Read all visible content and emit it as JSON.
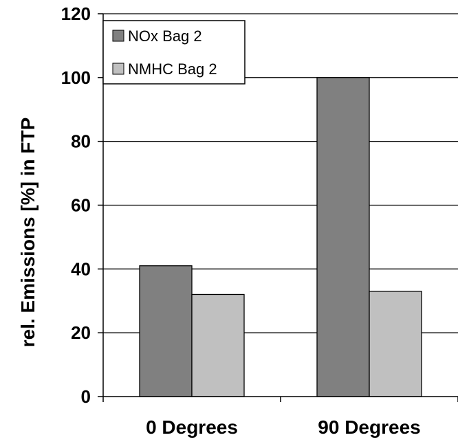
{
  "chart_data": {
    "type": "bar",
    "categories": [
      "0 Degrees",
      "90 Degrees"
    ],
    "series": [
      {
        "name": "NOx Bag 2",
        "values": [
          41,
          100
        ],
        "color": "#808080"
      },
      {
        "name": "NMHC Bag 2",
        "values": [
          32,
          33
        ],
        "color": "#c0c0c0"
      }
    ],
    "ylabel": "rel. Emissions [%] in FTP",
    "xlabel": "",
    "ylim": [
      0,
      120
    ],
    "yticks": [
      0,
      20,
      40,
      60,
      80,
      100,
      120
    ],
    "grid": true,
    "legend": "top-left"
  }
}
